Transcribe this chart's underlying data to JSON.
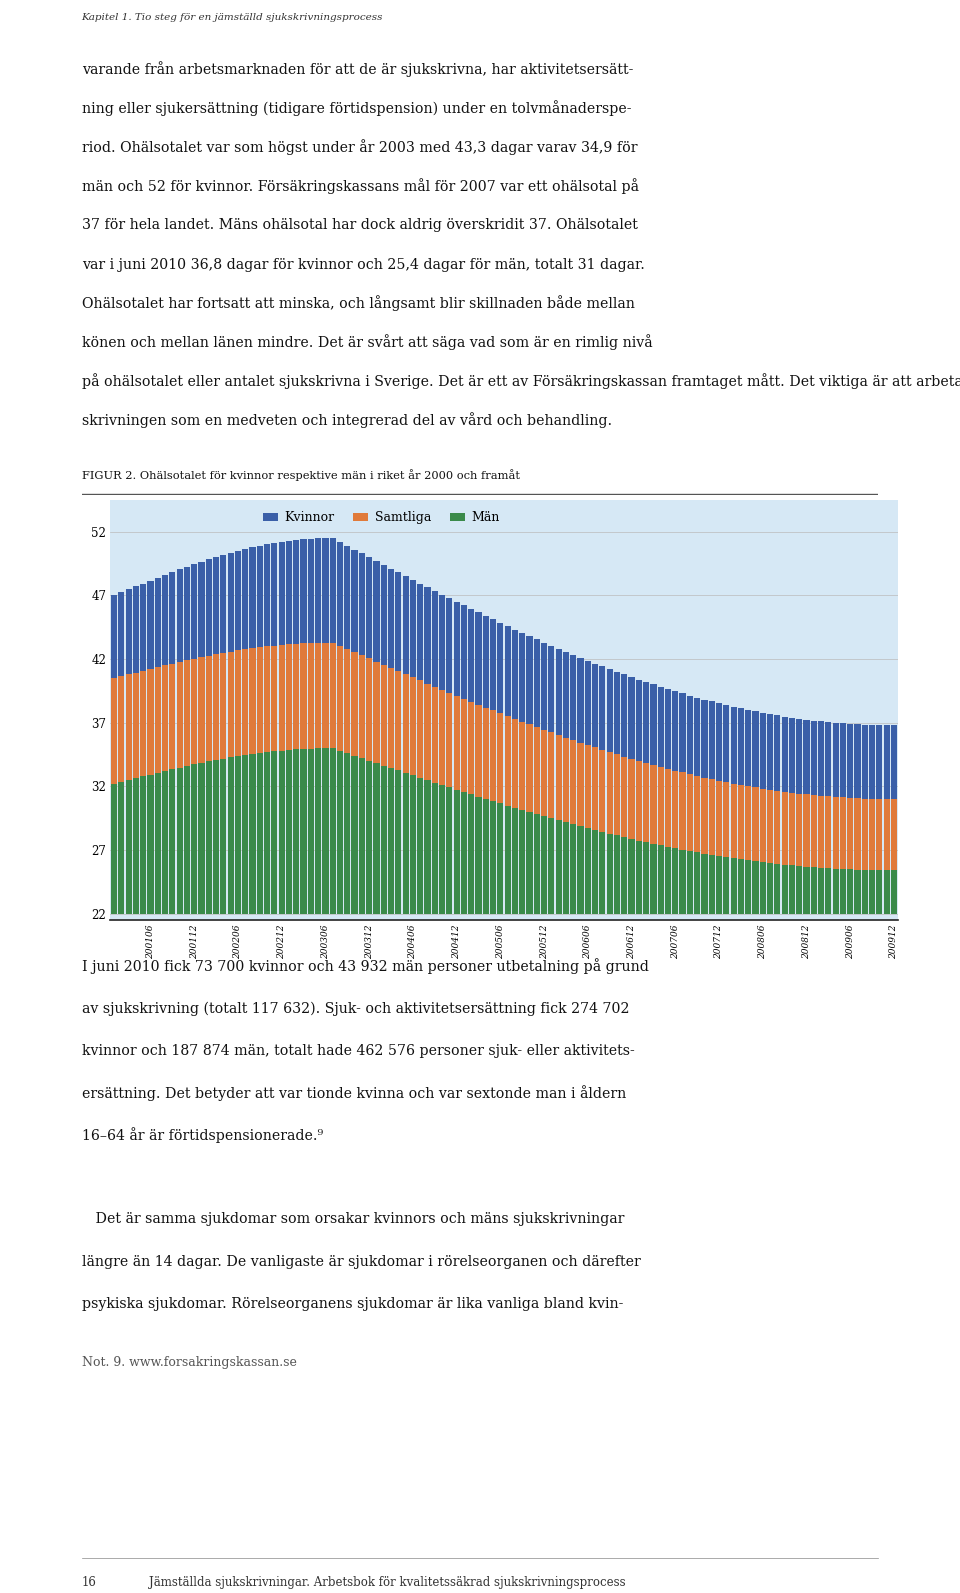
{
  "title_figur": "FIGUR 2. Ohälsotalet för kvinnor respektive män i riket år 2000 och framåt",
  "legend_labels": [
    "Kvinnor",
    "Samtliga",
    "Män"
  ],
  "bar_colors": [
    "#3a5fa8",
    "#e07a3a",
    "#3a8a4a"
  ],
  "background_color": "#d6e8f5",
  "page_bg": "#ffffff",
  "yticks": [
    22,
    27,
    32,
    37,
    42,
    47,
    52
  ],
  "ylim": [
    21.5,
    54.5
  ],
  "header_text": "Kapitel 1. Tio steg för en jämställd sjukskrivningsprocess",
  "top_lines": [
    "varande från arbetsmarknaden för att de är sjukskrivna, har aktivitetsersätt-",
    "ning eller sjukersättning (tidigare förtidspension) under en tolvmånaderspe-",
    "riod. Ohälsotalet var som högst under år 2003 med 43,3 dagar varav 34,9 för",
    "män och 52 för kvinnor. Försäkringskassans mål för 2007 var ett ohälsotal på",
    "37 för hela landet. Mäns ohälsotal har dock aldrig överskridit 37. Ohälsotalet",
    "var i juni 2010 36,8 dagar för kvinnor och 25,4 dagar för män, totalt 31 dagar.",
    "Ohälsotalet har fortsatt att minska, och långsamt blir skillnaden både mellan",
    "könen och mellan länen mindre. Det är svårt att säga vad som är en rimlig nivå",
    "på ohälsotalet eller antalet sjukskrivna i Sverige. Det är ett av Försäkringskassan framtaget mått. Det viktiga är att arbeta för en hög kvalitet och att se sjuk-",
    "skrivningen som en medveten och integrerad del av vård och behandling."
  ],
  "bottom_lines": [
    "I juni 2010 fick 73 700 kvinnor och 43 932 män personer utbetalning på grund",
    "av sjukskrivning (totalt 117 632). Sjuk- och aktivitetsersättning fick 274 702",
    "kvinnor och 187 874 män, totalt hade 462 576 personer sjuk- eller aktivitets-",
    "ersättning. Det betyder att var tionde kvinna och var sextonde man i åldern",
    "16–64 år är förtidspensionerade.⁹",
    "",
    "   Det är samma sjukdomar som orsakar kvinnors och mäns sjukskrivningar",
    "längre än 14 dagar. De vanligaste är sjukdomar i rörelseorganen och därefter",
    "psykiska sjukdomar. Rörelseorganens sjukdomar är lika vanliga bland kvin-"
  ],
  "note_text": "Not. 9. www.forsakringskassan.se",
  "footer_num": "16",
  "footer_text": "Jämställda sjukskrivningar. Arbetsbok för kvalitetssäkrad sjukskrivningsprocess"
}
